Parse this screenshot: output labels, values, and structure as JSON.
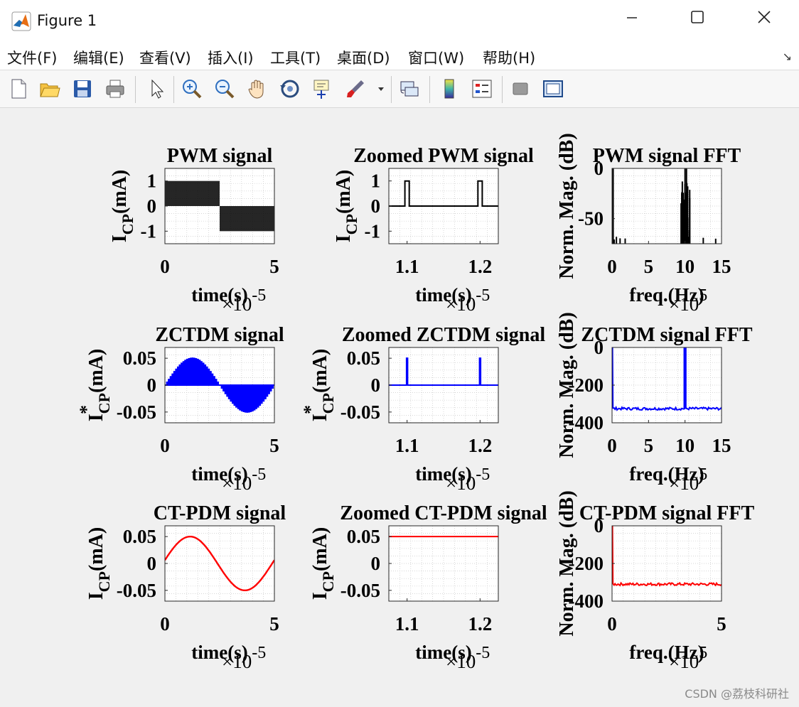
{
  "window": {
    "title": "Figure 1"
  },
  "menu": [
    "文件(F)",
    "编辑(E)",
    "查看(V)",
    "插入(I)",
    "工具(T)",
    "桌面(D)",
    "窗口(W)",
    "帮助(H)"
  ],
  "toolbar": [
    "new-figure-icon",
    "open-file-icon",
    "save-icon",
    "print-icon",
    "select-arrow-icon",
    "zoom-in-icon",
    "zoom-out-icon",
    "pan-hand-icon",
    "rotate-3d-icon",
    "data-cursor-icon",
    "brush-icon",
    "brush-dropdown-icon",
    "link-plot-icon",
    "colorbar-icon",
    "legend-icon",
    "hide-plot-tools-icon",
    "show-plot-tools-icon"
  ],
  "watermark": "CSDN @荔枝科研社",
  "colors": {
    "pwm": "#000000",
    "zctdm": "#0000ff",
    "ctpdm": "#ff0000"
  },
  "chart_data": [
    {
      "type": "line",
      "title": "PWM signal",
      "xlabel": "time(s)",
      "ylabel": "I_CP(mA)",
      "x_exponent": "×10^-5",
      "xlim": [
        0,
        5
      ],
      "ylim": [
        -1.5,
        1.5
      ],
      "xticks": [
        "0",
        "5"
      ],
      "yticks": [
        "1",
        "0",
        "-1"
      ],
      "series": [
        {
          "color": "#000000",
          "pattern": "pwm-bipolar"
        }
      ]
    },
    {
      "type": "line",
      "title": "Zoomed PWM signal",
      "xlabel": "time(s)",
      "ylabel": "I_CP(mA)",
      "x_exponent": "×10^-5",
      "xlim": [
        1.075,
        1.225
      ],
      "ylim": [
        -1.5,
        1.5
      ],
      "xticks": [
        "1.1",
        "1.2"
      ],
      "yticks": [
        "1",
        "0",
        "-1"
      ],
      "series": [
        {
          "color": "#000000",
          "baseline": 0,
          "pulses": [
            {
              "x": 1.1,
              "width": 0.006,
              "height": 1
            },
            {
              "x": 1.2,
              "width": 0.006,
              "height": 1
            }
          ]
        }
      ]
    },
    {
      "type": "line",
      "title": "PWM signal FFT",
      "xlabel": "freq.(Hz)",
      "ylabel": "Norm. Mag. (dB)",
      "x_exponent": "×10^5",
      "xlim": [
        0,
        15
      ],
      "ylim": [
        -75,
        0
      ],
      "xticks": [
        "0",
        "5",
        "10",
        "15"
      ],
      "yticks": [
        "0",
        "-50"
      ],
      "series": [
        {
          "color": "#000000",
          "peaks": [
            {
              "f": 0.1,
              "db": 0
            },
            {
              "f": 10,
              "db": 0
            }
          ],
          "floor_db": -80
        }
      ]
    },
    {
      "type": "line",
      "title": "ZCTDM signal",
      "xlabel": "time(s)",
      "ylabel": "I*_CP(mA)",
      "x_exponent": "×10^-5",
      "xlim": [
        0,
        5
      ],
      "ylim": [
        -0.07,
        0.07
      ],
      "xticks": [
        "0",
        "5"
      ],
      "yticks": [
        "0.05",
        "0",
        "-0.05"
      ],
      "series": [
        {
          "color": "#0000ff",
          "pattern": "sine-pulses",
          "amplitude": 0.05
        }
      ]
    },
    {
      "type": "line",
      "title": "Zoomed ZCTDM signal",
      "xlabel": "time(s)",
      "ylabel": "I*_CP(mA)",
      "x_exponent": "×10^-5",
      "xlim": [
        1.075,
        1.225
      ],
      "ylim": [
        -0.07,
        0.07
      ],
      "xticks": [
        "1.1",
        "1.2"
      ],
      "yticks": [
        "0.05",
        "0",
        "-0.05"
      ],
      "series": [
        {
          "color": "#0000ff",
          "baseline": 0,
          "pulses": [
            {
              "x": 1.1,
              "width": 0.0015,
              "height": 0.05
            },
            {
              "x": 1.2,
              "width": 0.0015,
              "height": 0.05
            }
          ]
        }
      ]
    },
    {
      "type": "line",
      "title": "ZCTDM signal FFT",
      "xlabel": "freq.(Hz)",
      "ylabel": "Norm. Mag. (dB)",
      "x_exponent": "×10^5",
      "xlim": [
        0,
        15
      ],
      "ylim": [
        -400,
        0
      ],
      "xticks": [
        "0",
        "5",
        "10",
        "15"
      ],
      "yticks": [
        "0",
        "-200",
        "-400"
      ],
      "series": [
        {
          "color": "#0000ff",
          "noise_floor_db": -325,
          "spikes": [
            0.1,
            9.9,
            10.1
          ]
        }
      ]
    },
    {
      "type": "line",
      "title": "CT-PDM signal",
      "xlabel": "time(s)",
      "ylabel": "I_CP(mA)",
      "x_exponent": "×10^-5",
      "xlim": [
        0,
        5
      ],
      "ylim": [
        -0.07,
        0.07
      ],
      "xticks": [
        "0",
        "5"
      ],
      "yticks": [
        "0.05",
        "0",
        "-0.05"
      ],
      "series": [
        {
          "color": "#ff0000",
          "pattern": "sine",
          "amplitude": 0.05,
          "phase_shift": 0.1
        }
      ]
    },
    {
      "type": "line",
      "title": "Zoomed CT-PDM signal",
      "xlabel": "time(s)",
      "ylabel": "I_CP(mA)",
      "x_exponent": "×10^-5",
      "xlim": [
        1.075,
        1.225
      ],
      "ylim": [
        -0.07,
        0.07
      ],
      "xticks": [
        "1.1",
        "1.2"
      ],
      "yticks": [
        "0.05",
        "0",
        "-0.05"
      ],
      "series": [
        {
          "color": "#ff0000",
          "constant": 0.05
        }
      ]
    },
    {
      "type": "line",
      "title": "CT-PDM signal FFT",
      "xlabel": "freq.(Hz)",
      "ylabel": "Norm. Mag. (dB)",
      "x_exponent": "×10^5",
      "xlim": [
        0,
        5
      ],
      "ylim": [
        -400,
        0
      ],
      "xticks": [
        "0",
        "5"
      ],
      "yticks": [
        "0",
        "-200",
        "-400"
      ],
      "series": [
        {
          "color": "#ff0000",
          "noise_floor_db": -310,
          "spikes": [
            0.2
          ]
        }
      ]
    }
  ]
}
